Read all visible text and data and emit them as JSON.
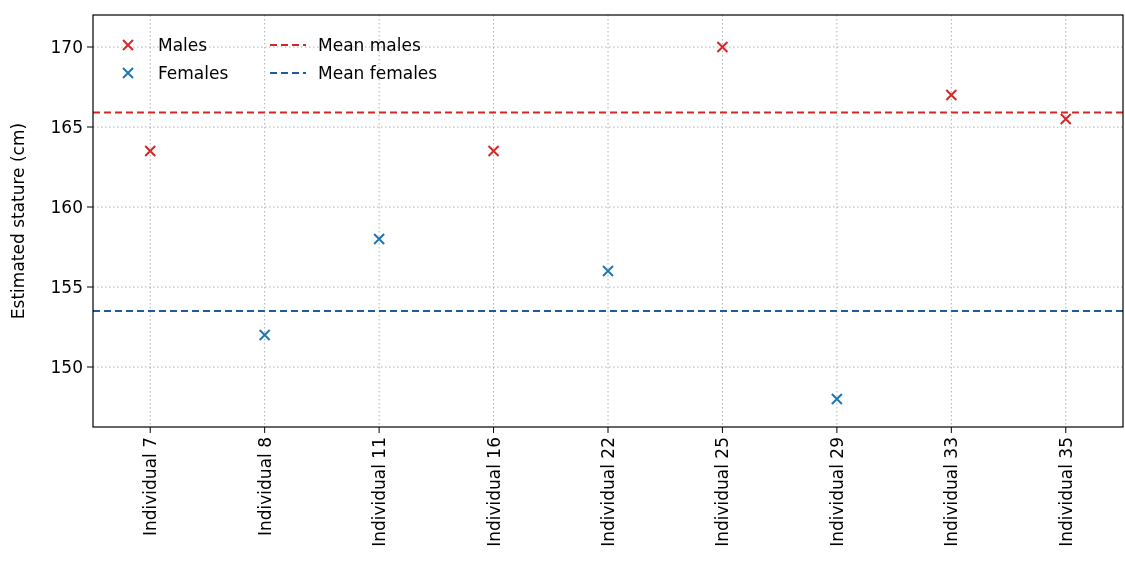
{
  "chart_data": {
    "type": "scatter",
    "ylabel": "Estimated stature (cm)",
    "categories": [
      "Individual 7",
      "Individual 8",
      "Individual 11",
      "Individual 16",
      "Individual 22",
      "Individual 25",
      "Individual 29",
      "Individual 33",
      "Individual 35"
    ],
    "series": [
      {
        "name": "Males",
        "color": "#d62728",
        "values": [
          163.5,
          null,
          null,
          163.5,
          null,
          170,
          null,
          167,
          165.5
        ]
      },
      {
        "name": "Females",
        "color": "#1f77b4",
        "values": [
          null,
          152,
          158,
          null,
          156,
          null,
          148,
          null,
          null
        ]
      }
    ],
    "ref_lines": [
      {
        "axis": "y",
        "value": 165.9,
        "label": "Mean males",
        "color": "#d62728",
        "line_style": "dashed"
      },
      {
        "axis": "y",
        "value": 153.5,
        "label": "Mean females",
        "color": "#1f5a9c",
        "line_style": "dashed"
      }
    ],
    "ylim": [
      146.25,
      172
    ],
    "yticks": [
      150,
      155,
      160,
      165,
      170
    ],
    "grid": true,
    "legend": "top left",
    "marker": "cross"
  }
}
